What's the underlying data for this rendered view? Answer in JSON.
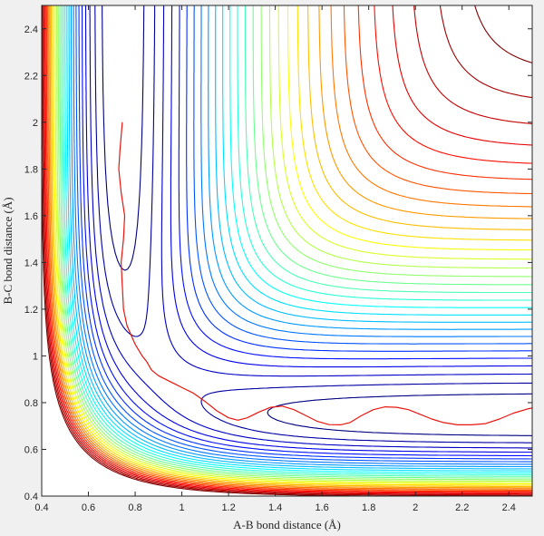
{
  "chart_data": {
    "type": "contour",
    "title": "",
    "xlabel": "A-B bond distance (Å)",
    "ylabel": "B-C bond distance (Å)",
    "xlim": [
      0.4,
      2.5
    ],
    "ylim": [
      0.4,
      2.5
    ],
    "x_ticks": [
      "0.4",
      "0.6",
      "0.8",
      "1",
      "1.2",
      "1.4",
      "1.6",
      "1.8",
      "2",
      "2.2",
      "2.4"
    ],
    "y_ticks": [
      "0.4",
      "0.6",
      "0.8",
      "1",
      "1.2",
      "1.4",
      "1.6",
      "1.8",
      "2",
      "2.2",
      "2.4"
    ],
    "x_tick_values": [
      0.4,
      0.6,
      0.8,
      1.0,
      1.2,
      1.4,
      1.6,
      1.8,
      2.0,
      2.2,
      2.4
    ],
    "y_tick_values": [
      0.4,
      0.6,
      0.8,
      1.0,
      1.2,
      1.4,
      1.6,
      1.8,
      2.0,
      2.2,
      2.4
    ],
    "grid": false,
    "colormap": "jet",
    "series": [
      {
        "type": "contour",
        "levels": 30
      },
      {
        "type": "line",
        "color": "#e8160f",
        "points": [
          [
            0.745,
            2.0
          ],
          [
            0.735,
            1.88
          ],
          [
            0.73,
            1.8
          ],
          [
            0.74,
            1.7
          ],
          [
            0.755,
            1.6
          ],
          [
            0.75,
            1.5
          ],
          [
            0.74,
            1.4
          ],
          [
            0.745,
            1.3
          ],
          [
            0.75,
            1.2
          ],
          [
            0.765,
            1.13
          ],
          [
            0.8,
            1.05
          ],
          [
            0.83,
            1.0
          ],
          [
            0.85,
            0.975
          ],
          [
            0.87,
            0.94
          ],
          [
            0.9,
            0.915
          ],
          [
            0.93,
            0.9
          ],
          [
            0.97,
            0.88
          ],
          [
            1.01,
            0.86
          ],
          [
            1.05,
            0.84
          ],
          [
            1.1,
            0.805
          ],
          [
            1.15,
            0.765
          ],
          [
            1.2,
            0.735
          ],
          [
            1.24,
            0.725
          ],
          [
            1.28,
            0.735
          ],
          [
            1.33,
            0.76
          ],
          [
            1.38,
            0.78
          ],
          [
            1.43,
            0.785
          ],
          [
            1.48,
            0.77
          ],
          [
            1.53,
            0.745
          ],
          [
            1.58,
            0.72
          ],
          [
            1.63,
            0.706
          ],
          [
            1.68,
            0.705
          ],
          [
            1.72,
            0.715
          ],
          [
            1.77,
            0.745
          ],
          [
            1.82,
            0.77
          ],
          [
            1.87,
            0.782
          ],
          [
            1.92,
            0.78
          ],
          [
            1.97,
            0.77
          ],
          [
            2.02,
            0.75
          ],
          [
            2.07,
            0.73
          ],
          [
            2.12,
            0.715
          ],
          [
            2.18,
            0.705
          ],
          [
            2.24,
            0.705
          ],
          [
            2.3,
            0.71
          ],
          [
            2.36,
            0.73
          ],
          [
            2.42,
            0.755
          ],
          [
            2.48,
            0.773
          ],
          [
            2.5,
            0.777
          ]
        ]
      }
    ]
  }
}
